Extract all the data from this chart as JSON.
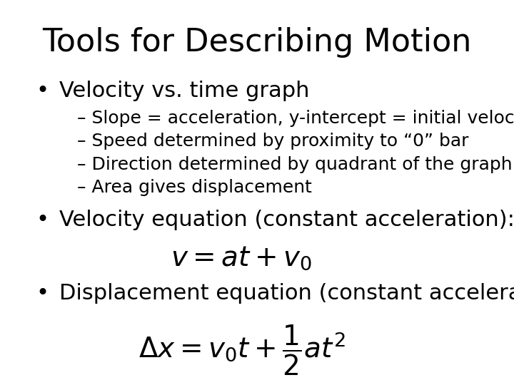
{
  "title": "Tools for Describing Motion",
  "title_fontsize": 32,
  "background_color": "#ffffff",
  "text_color": "#000000",
  "bullet1": "Velocity vs. time graph",
  "bullet1_fontsize": 22,
  "sub_bullets": [
    "– Slope = acceleration, y-intercept = initial velocity",
    "– Speed determined by proximity to “0” bar",
    "– Direction determined by quadrant of the graph",
    "– Area gives displacement"
  ],
  "sub_bullet_fontsize": 18,
  "bullet2": "Velocity equation (constant acceleration):",
  "bullet2_fontsize": 22,
  "eq1": "$v = at + v_0$",
  "eq1_fontsize": 28,
  "bullet3": "Displacement equation (constant acceleration)",
  "bullet3_fontsize": 22,
  "eq2": "$\\Delta x = v_0 t + \\dfrac{1}{2} at^2$",
  "eq2_fontsize": 28
}
